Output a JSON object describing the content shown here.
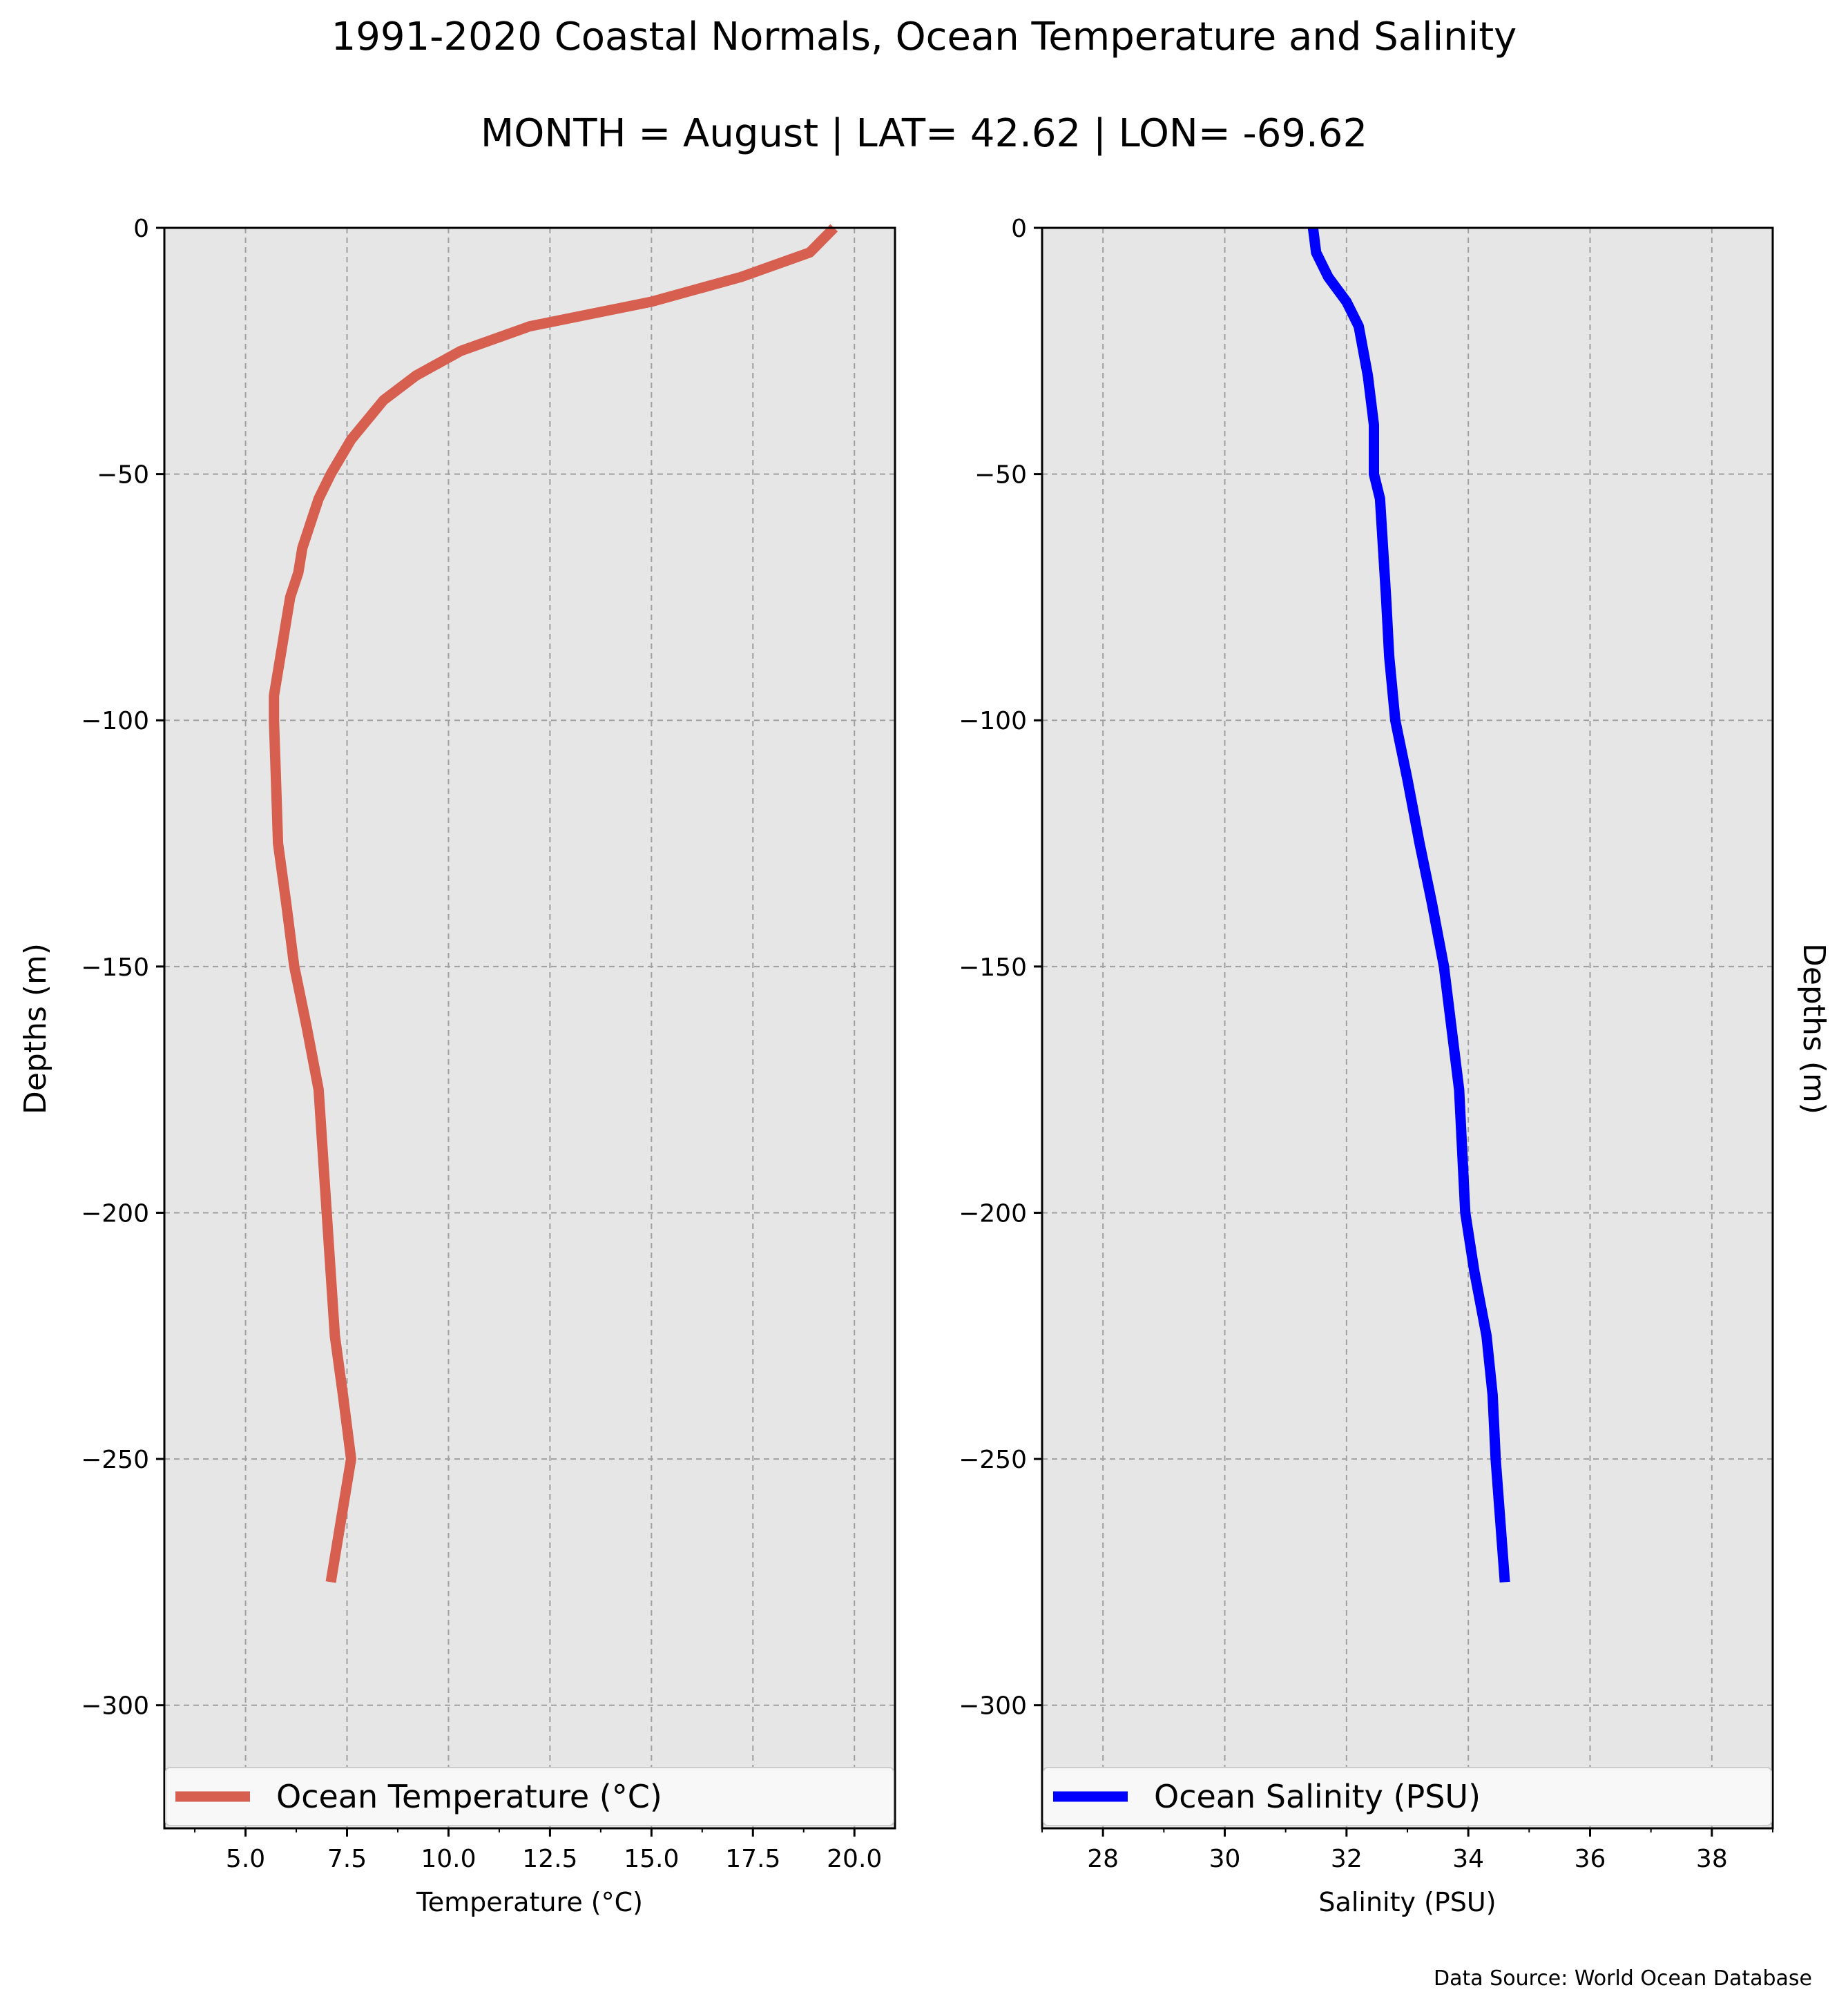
{
  "figure": {
    "title": "1991-2020 Coastal Normals, Ocean Temperature and Salinity",
    "subtitle": "MONTH = August | LAT= 42.62 | LON= -69.62",
    "source": "Data Source: World Ocean Database",
    "background_color": "#e6e6e6",
    "grid_color": "#a0a0a0"
  },
  "chart_data": [
    {
      "type": "line",
      "series": [
        {
          "name": "Ocean Temperature (°C)",
          "color": "#d65f4f",
          "x": [
            19.5,
            18.9,
            17.2,
            15.0,
            12.0,
            10.3,
            9.2,
            8.4,
            7.6,
            7.1,
            6.8,
            6.6,
            6.4,
            6.3,
            6.1,
            6.0,
            5.9,
            5.8,
            5.7,
            5.7,
            5.75,
            5.8,
            6.0,
            6.2,
            6.5,
            6.8,
            7.0,
            7.2,
            7.4,
            7.6,
            7.1
          ],
          "y": [
            0,
            -5,
            -10,
            -15,
            -20,
            -25,
            -30,
            -35,
            -43,
            -50,
            -55,
            -60,
            -65,
            -70,
            -75,
            -80,
            -85,
            -90,
            -95,
            -100,
            -112,
            -125,
            -137,
            -150,
            -162,
            -175,
            -200,
            -225,
            -237,
            -250,
            -275
          ]
        }
      ],
      "xlabel": "Temperature (°C)",
      "ylabel": "Depths (m)",
      "xlim": [
        3,
        21
      ],
      "ylim": [
        -325,
        0
      ],
      "xticks": [
        5.0,
        7.5,
        10.0,
        12.5,
        15.0,
        17.5,
        20.0
      ],
      "xtick_labels": [
        "5.0",
        "7.5",
        "10.0",
        "12.5",
        "15.0",
        "17.5",
        "20.0"
      ],
      "yticks": [
        0,
        -50,
        -100,
        -150,
        -200,
        -250,
        -300
      ],
      "ytick_labels": [
        "0",
        "−50",
        "−100",
        "−150",
        "−200",
        "−250",
        "−300"
      ],
      "grid": true,
      "legend": "bottom"
    },
    {
      "type": "line",
      "series": [
        {
          "name": "Ocean Salinity (PSU)",
          "color": "#0000ff",
          "x": [
            31.45,
            31.5,
            31.7,
            32.0,
            32.2,
            32.35,
            32.45,
            32.45,
            32.55,
            32.6,
            32.65,
            32.7,
            32.8,
            33.0,
            33.2,
            33.4,
            33.6,
            33.85,
            33.95,
            34.1,
            34.3,
            34.4,
            34.45,
            34.6
          ],
          "y": [
            0,
            -5,
            -10,
            -15,
            -20,
            -30,
            -40,
            -50,
            -55,
            -65,
            -75,
            -87,
            -100,
            -112,
            -125,
            -137,
            -150,
            -175,
            -200,
            -212,
            -225,
            -237,
            -250,
            -275
          ]
        }
      ],
      "xlabel": "Salinity (PSU)",
      "ylabel": "Depths (m)",
      "xlim": [
        27,
        39
      ],
      "ylim": [
        -325,
        0
      ],
      "xticks": [
        28,
        30,
        32,
        34,
        36,
        38
      ],
      "xtick_labels": [
        "28",
        "30",
        "32",
        "34",
        "36",
        "38"
      ],
      "yticks": [
        0,
        -50,
        -100,
        -150,
        -200,
        -250,
        -300
      ],
      "ytick_labels": [
        "0",
        "−50",
        "−100",
        "−150",
        "−200",
        "−250",
        "−300"
      ],
      "grid": true,
      "legend": "bottom"
    }
  ]
}
